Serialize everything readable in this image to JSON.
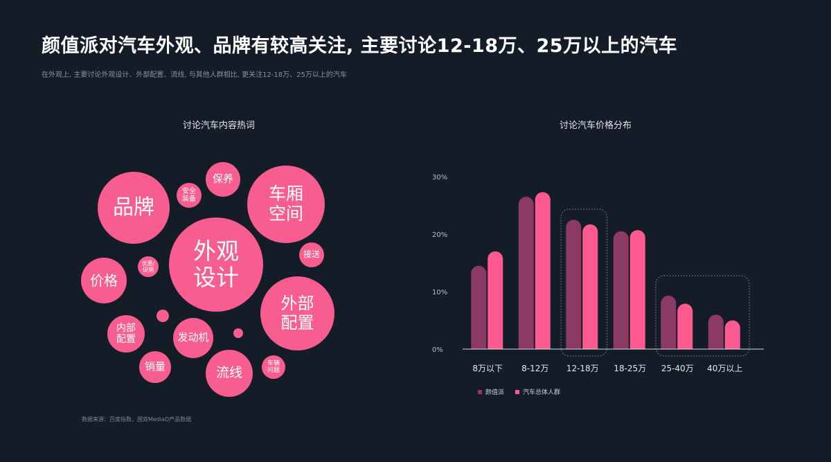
{
  "header": {
    "title": "颜值派对汽车外观、品牌有较高关注, 主要讨论12-18万、25万以上的汽车",
    "subtitle": "在外观上, 主要讨论外观设计、外部配置、流线, 与其他人群相比, 更关注12-18万、25万以上的汽车"
  },
  "bubble_panel": {
    "title": "讨论汽车内容热词",
    "color": "#f75d8f",
    "bubbles": [
      {
        "line1": "外观",
        "line2": "设计"
      },
      {
        "line1": "品牌",
        "line2": ""
      },
      {
        "line1": "车厢",
        "line2": "空间"
      },
      {
        "line1": "外部",
        "line2": "配置"
      },
      {
        "line1": "保养",
        "line2": ""
      },
      {
        "line1": "安全",
        "line2": "装备"
      },
      {
        "line1": "价格",
        "line2": ""
      },
      {
        "line1": "优惠/",
        "line2": "促销"
      },
      {
        "line1": "接送",
        "line2": ""
      },
      {
        "line1": "内部",
        "line2": "配置"
      },
      {
        "line1": "发动机",
        "line2": ""
      },
      {
        "line1": "销量",
        "line2": ""
      },
      {
        "line1": "流线",
        "line2": ""
      },
      {
        "line1": "车辆",
        "line2": "问题"
      },
      {
        "line1": "",
        "line2": ""
      },
      {
        "line1": "",
        "line2": ""
      }
    ],
    "source": "数据来源：百度指数，国双MediaD产品数据"
  },
  "bar_panel": {
    "title": "讨论汽车价格分布"
  },
  "chart_data": {
    "type": "bar",
    "categories": [
      "8万以下",
      "8-12万",
      "12-18万",
      "18-25万",
      "25-40万",
      "40万以上"
    ],
    "series": [
      {
        "name": "颜值派",
        "values": [
          14.5,
          26.5,
          22.5,
          20.5,
          9.3,
          6.0
        ],
        "color": "#8a3a63"
      },
      {
        "name": "汽车总体人群",
        "values": [
          17.0,
          27.3,
          21.7,
          20.7,
          7.9,
          5.0
        ],
        "color": "#ff5a90"
      }
    ],
    "ylim": [
      0,
      30
    ],
    "yticks": [
      "0%",
      "10%",
      "20%",
      "30%"
    ],
    "highlighted_categories": [
      "12-18万",
      "25-40万",
      "40万以上"
    ],
    "legend_position": "bottom-left",
    "grid": false
  }
}
